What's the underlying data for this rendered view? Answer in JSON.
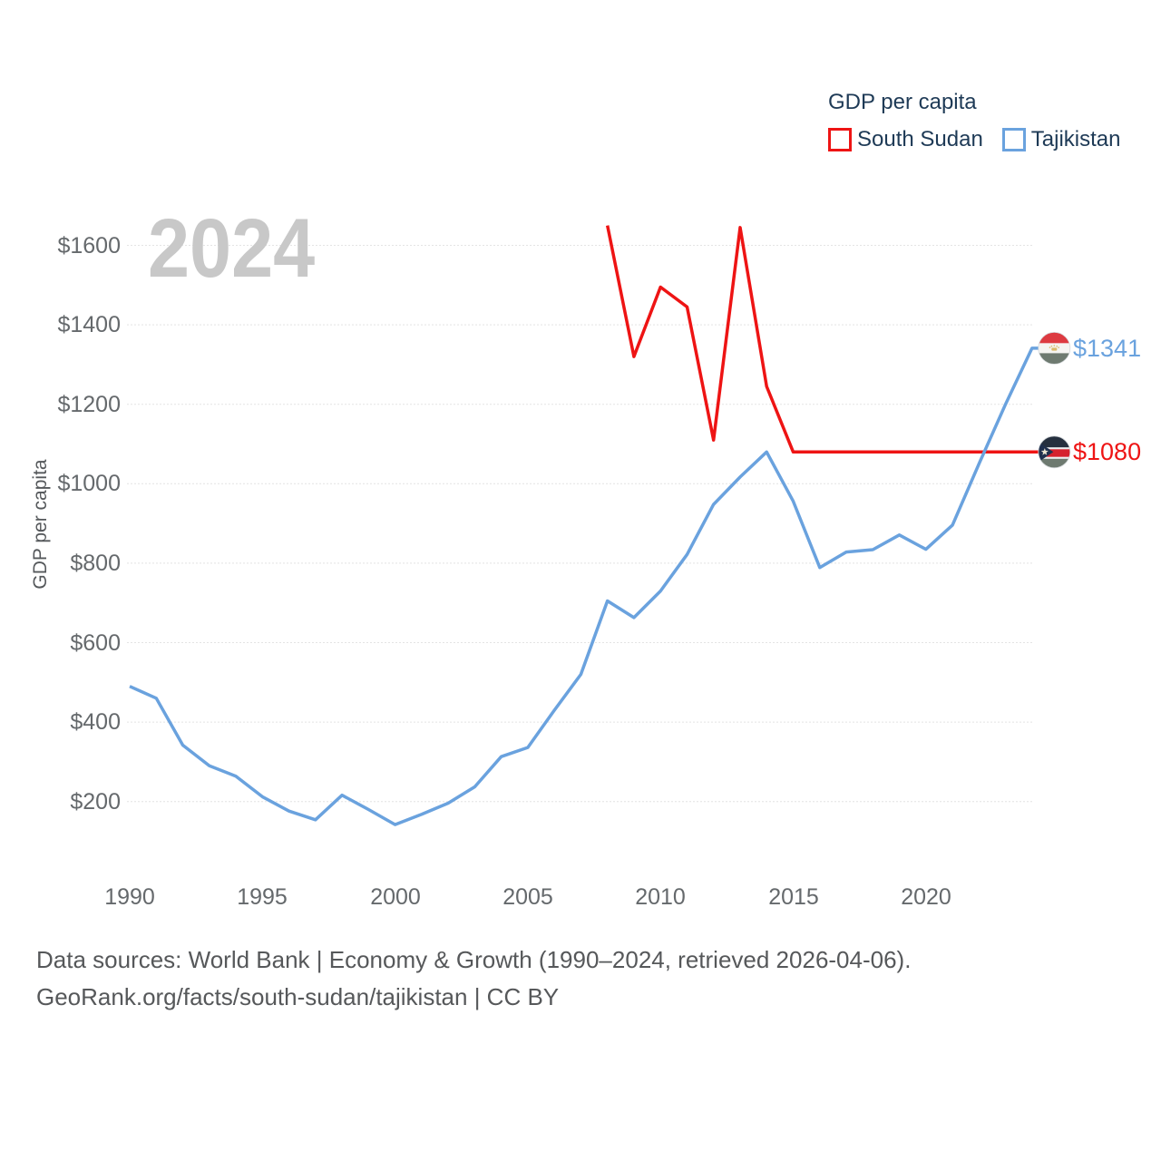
{
  "watermark": "2024",
  "legend": {
    "title": "GDP per capita",
    "items": [
      {
        "label": "South Sudan",
        "color": "#ee1414"
      },
      {
        "label": "Tajikistan",
        "color": "#6aa2de"
      }
    ]
  },
  "y_axis": {
    "title": "GDP per capita",
    "ticks": [
      "$1600",
      "$1400",
      "$1200",
      "$1000",
      "$800",
      "$600",
      "$400",
      "$200"
    ]
  },
  "x_axis": {
    "ticks": [
      "1990",
      "1995",
      "2000",
      "2005",
      "2010",
      "2015",
      "2020"
    ]
  },
  "footer": {
    "line1": "Data sources: World Bank | Economy & Growth (1990–2024, retrieved 2026-04-06).",
    "line2": "GeoRank.org/facts/south-sudan/tajikistan | CC BY"
  },
  "colors": {
    "south_sudan": "#ee1414",
    "tajikistan": "#6aa2de",
    "dark_text": "#1e3a56",
    "tick_text": "#65696c",
    "footer_text": "#56585a",
    "watermark": "#c8c8c8",
    "gridline": "#e4e4e4"
  },
  "chart_data": {
    "type": "line",
    "title": "GDP per capita",
    "xlabel": "",
    "ylabel": "GDP per capita",
    "xlim": [
      1990,
      2024
    ],
    "ylim": [
      130,
      1690
    ],
    "grid": "horizontal-only",
    "legend_position": "top-right",
    "y_tick_values": [
      1600,
      1400,
      1200,
      1000,
      800,
      600,
      400,
      200
    ],
    "x_tick_values": [
      1990,
      1995,
      2000,
      2005,
      2010,
      2015,
      2020
    ],
    "series": [
      {
        "name": "South Sudan",
        "flag": "south-sudan",
        "color": "#ee1414",
        "end_label": "$1080",
        "x": [
          2008,
          2009,
          2010,
          2011,
          2012,
          2013,
          2014,
          2015,
          2016,
          2017,
          2018,
          2019,
          2020,
          2021,
          2022,
          2023,
          2024
        ],
        "values": [
          1650,
          1320,
          1495,
          1445,
          1110,
          1645,
          1245,
          1080,
          1080,
          1080,
          1080,
          1080,
          1080,
          1080,
          1080,
          1080,
          1080
        ]
      },
      {
        "name": "Tajikistan",
        "flag": "tajikistan",
        "color": "#6aa2de",
        "end_label": "$1341",
        "x": [
          1990,
          1991,
          1992,
          1993,
          1994,
          1995,
          1996,
          1997,
          1998,
          1999,
          2000,
          2001,
          2002,
          2003,
          2004,
          2005,
          2006,
          2007,
          2008,
          2009,
          2010,
          2011,
          2012,
          2013,
          2014,
          2015,
          2016,
          2017,
          2018,
          2019,
          2020,
          2021,
          2022,
          2023,
          2024
        ],
        "values": [
          490,
          460,
          342,
          290,
          264,
          212,
          176,
          154,
          216,
          180,
          142,
          168,
          196,
          237,
          313,
          336,
          430,
          520,
          705,
          663,
          730,
          822,
          948,
          1017,
          1080,
          956,
          789,
          828,
          834,
          871,
          835,
          896,
          1050,
          1200,
          1341
        ]
      }
    ]
  }
}
